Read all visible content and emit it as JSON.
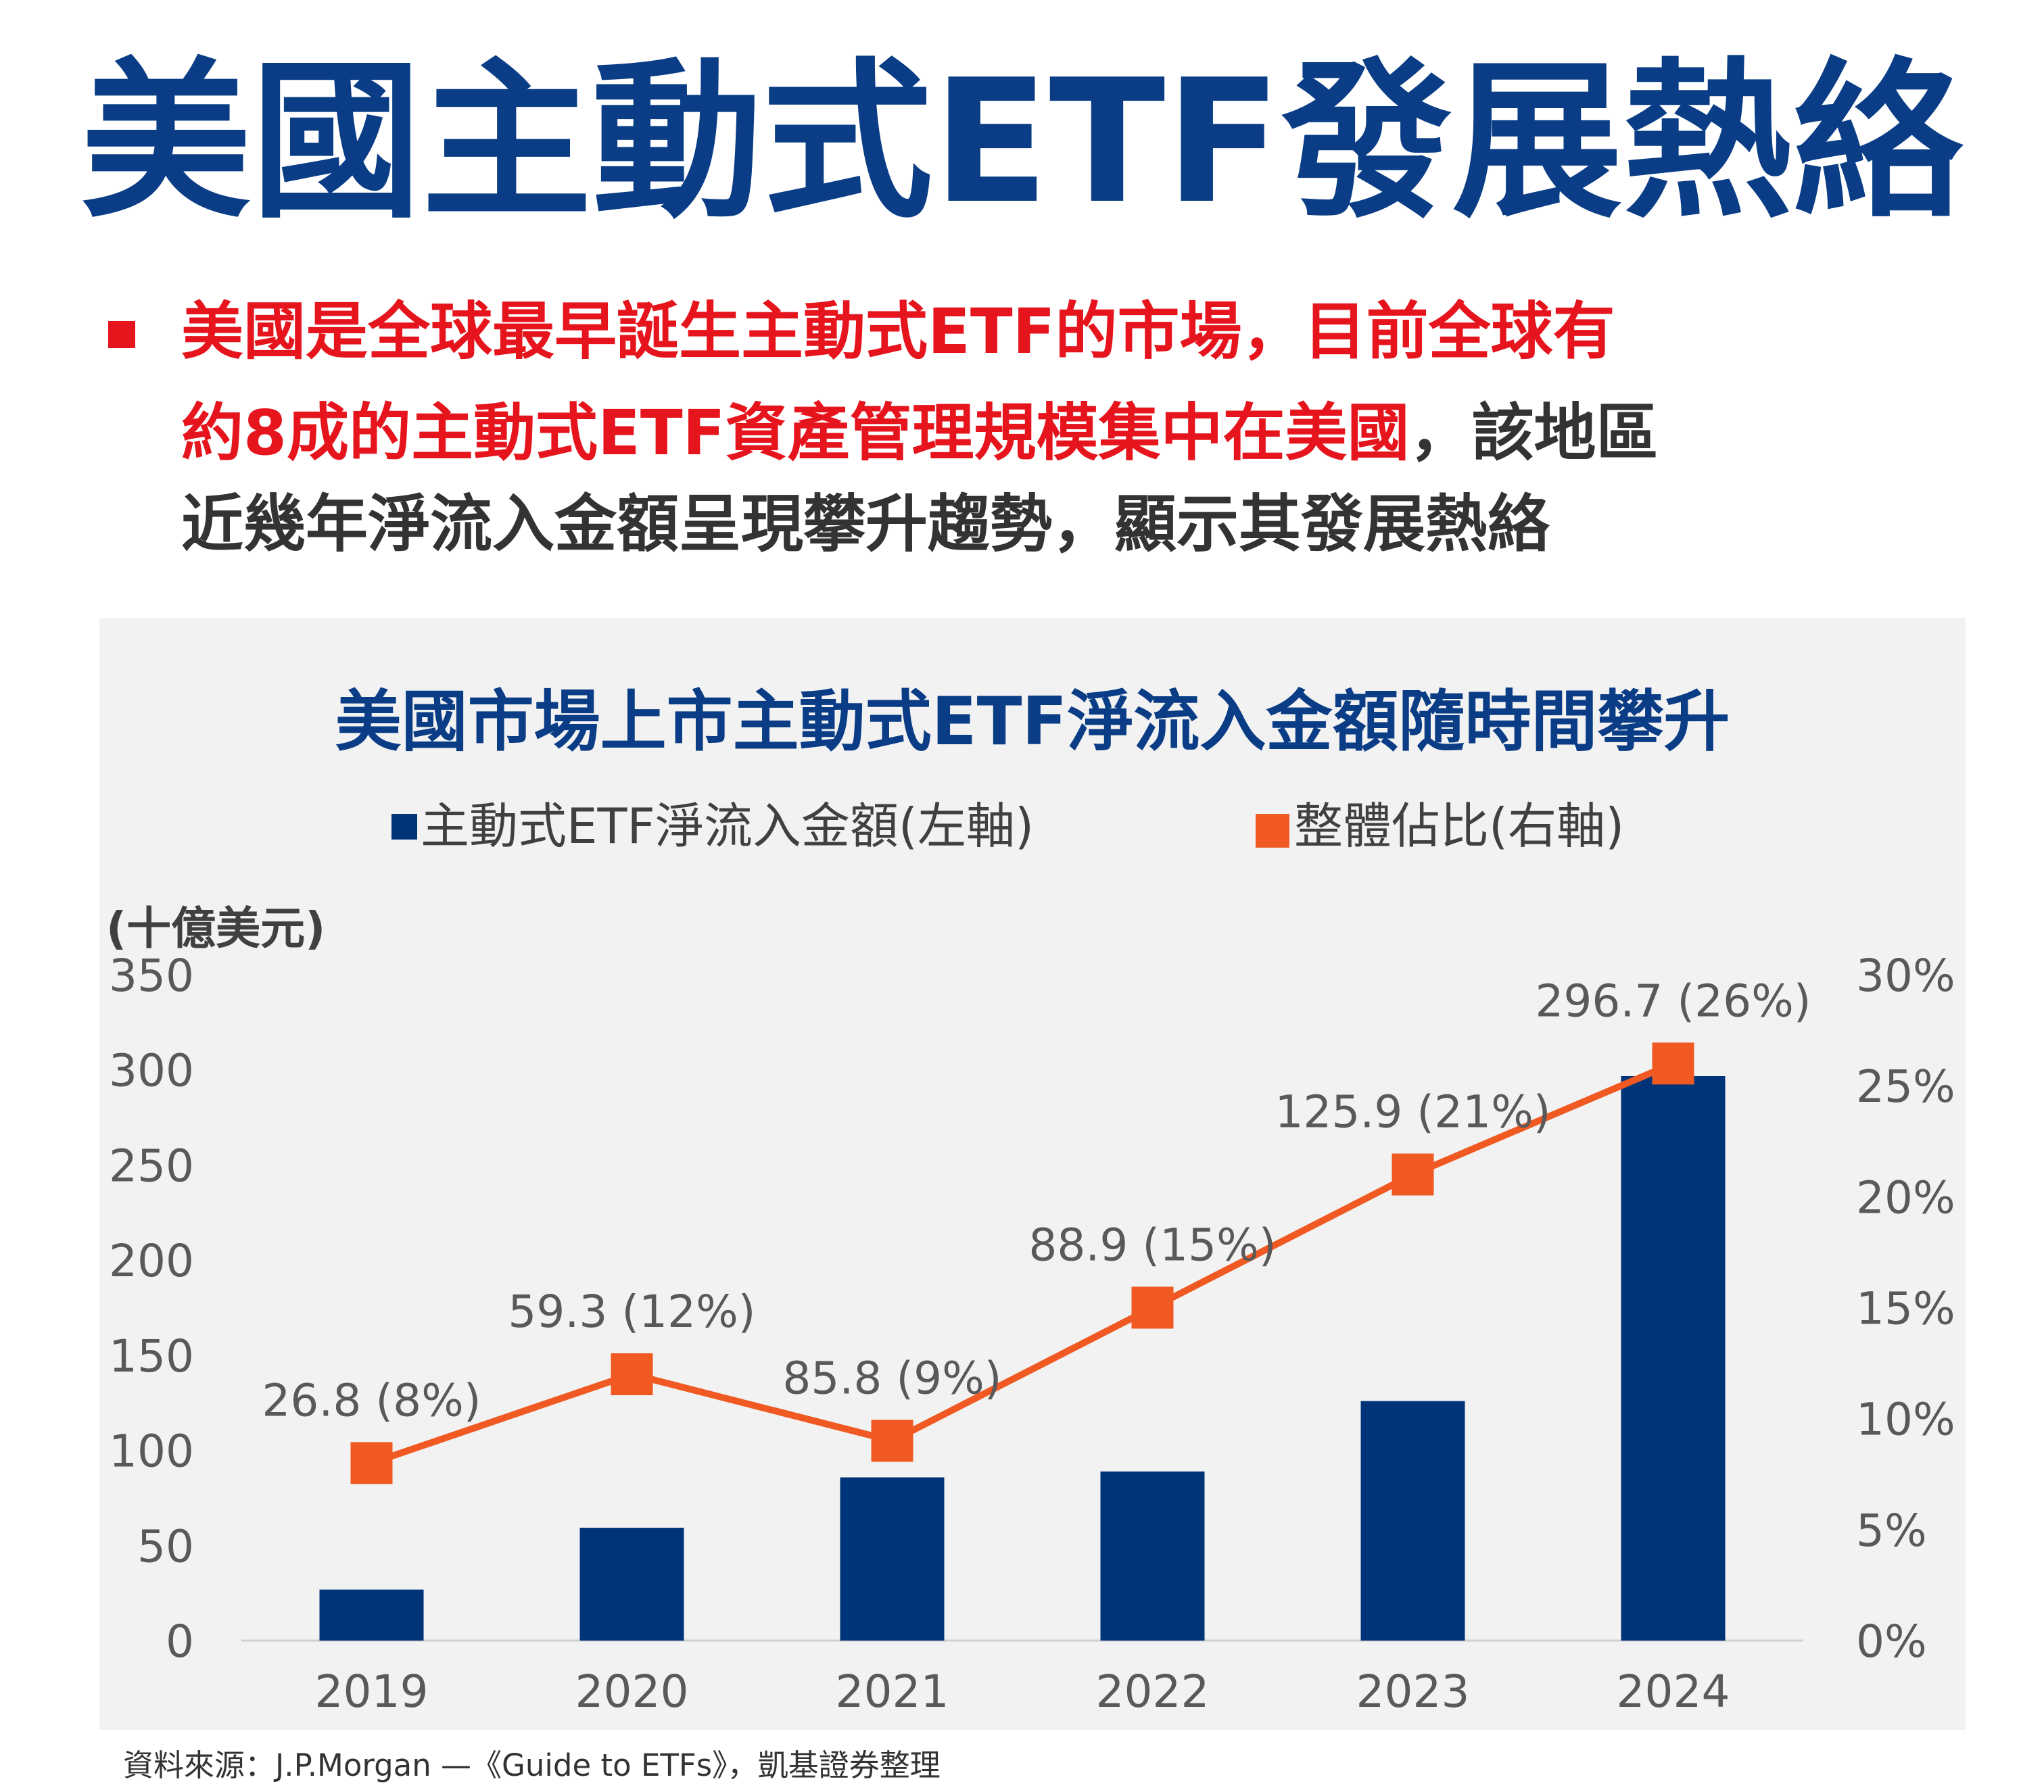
{
  "title": "美國主動式ETF發展熱絡",
  "bullet": {
    "line1": "美國是全球最早誕生主動式ETF的市場，目前全球有",
    "line2_red": "約8成的主動式ETF資產管理規模集中在美國",
    "line2_grey": "，該地區",
    "line3": "近幾年淨流入金額呈現攀升趨勢，顯示其發展熱絡"
  },
  "source": "資料來源：J.P.Morgan —《Guide to ETFs》，凱基證券整理",
  "colors": {
    "title_blue": "#0a3d86",
    "highlight_red": "#e6151d",
    "bar_navy": "#003478",
    "line_orange": "#f05a22",
    "panel_bg": "#f2f2f2"
  },
  "chart_data": {
    "type": "bar",
    "title": "美國市場上市主動式ETF淨流入金額隨時間攀升",
    "left_axis_unit": "(十億美元)",
    "categories": [
      "2019",
      "2020",
      "2021",
      "2022",
      "2023",
      "2024"
    ],
    "y_ticks": [
      "0",
      "50",
      "100",
      "150",
      "200",
      "250",
      "300",
      "350"
    ],
    "y2_ticks": [
      "0%",
      "5%",
      "10%",
      "15%",
      "20%",
      "25%",
      "30%"
    ],
    "ylim": [
      0,
      350
    ],
    "y2lim": [
      0,
      30
    ],
    "grid": false,
    "legend_position": "top",
    "series": [
      {
        "name": "主動式ETF淨流入金額(左軸)",
        "kind": "bar",
        "axis": "left",
        "values": [
          26.8,
          59.3,
          85.8,
          88.9,
          125.9,
          296.7
        ]
      },
      {
        "name": "整體佔比(右軸)",
        "kind": "line",
        "axis": "right",
        "values": [
          8,
          12,
          9,
          15,
          21,
          26
        ]
      }
    ],
    "data_labels": [
      "26.8 (8%)",
      "59.3 (12%)",
      "85.8 (9%)",
      "88.9 (15%)",
      "125.9 (21%)",
      "296.7 (26%)"
    ]
  }
}
